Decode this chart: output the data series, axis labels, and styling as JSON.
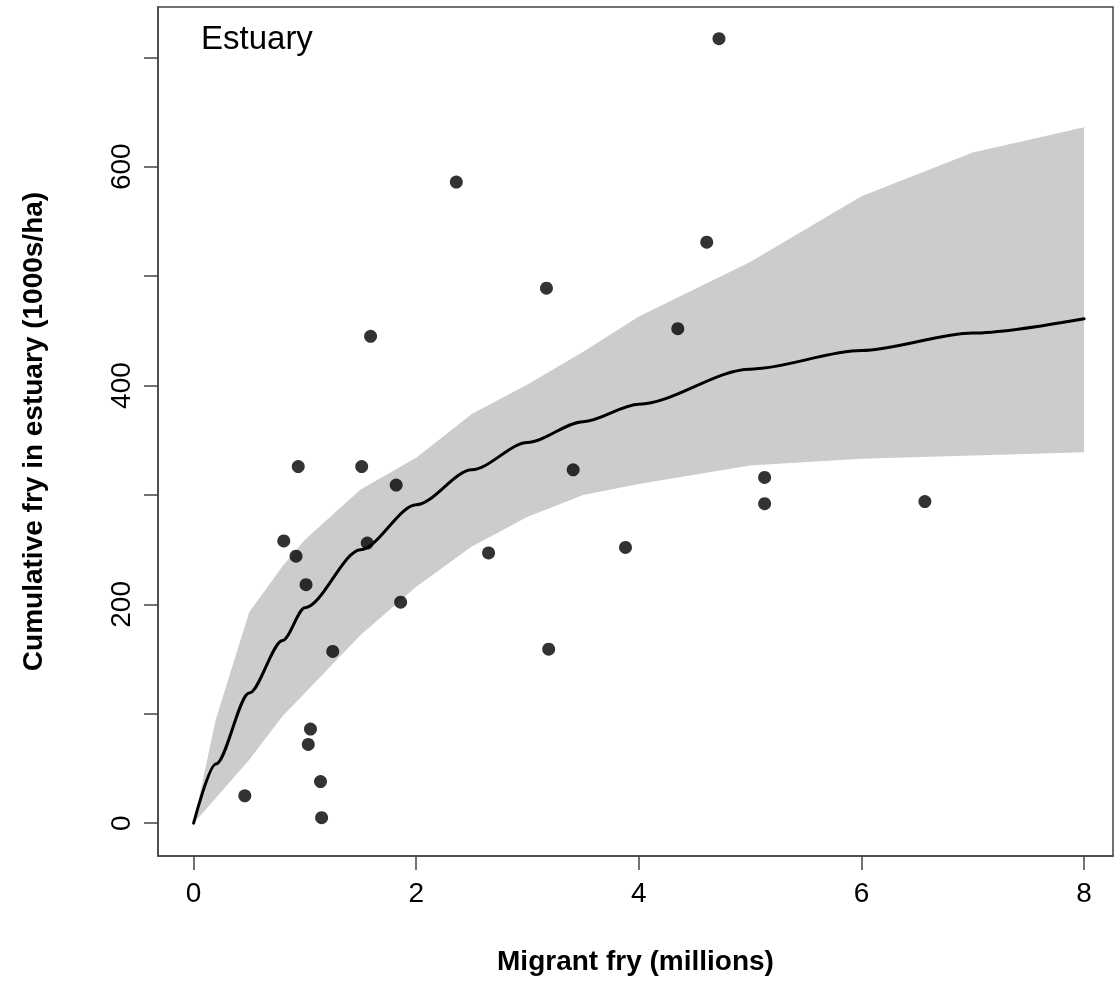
{
  "chart_data": {
    "type": "scatter",
    "title": "Estuary",
    "xlabel": "Migrant fry (millions)",
    "ylabel": "Cumulative fry in estuary (1000s/ha)",
    "xlim": [
      -0.32,
      8.26
    ],
    "ylim": [
      -30,
      746
    ],
    "xticks": [
      0,
      2,
      4,
      6,
      8
    ],
    "yticks": [
      0,
      {
        "value": 100,
        "label": null
      },
      200,
      {
        "value": 300,
        "label": null
      },
      400,
      {
        "value": 500,
        "label": null
      },
      600,
      {
        "value": 700,
        "label": null
      }
    ],
    "grid": false,
    "series": [
      {
        "type": "line",
        "color": "#000000",
        "marker": "none",
        "line_style": "solid",
        "x": [
          0,
          0.2,
          0.5,
          0.8,
          1,
          1.5,
          2,
          2.5,
          3,
          3.5,
          4,
          5,
          6,
          7,
          8
        ],
        "values": [
          0,
          54,
          119,
          167,
          197,
          250,
          291,
          323,
          348,
          367,
          383,
          415,
          432,
          448,
          461
        ],
        "lower": [
          0,
          23,
          58,
          98,
          119,
          172,
          216,
          253,
          280,
          300,
          310,
          327,
          333,
          336,
          339
        ],
        "upper": [
          0,
          95,
          193,
          235,
          259,
          305,
          334,
          374,
          401,
          431,
          463,
          513,
          573,
          613,
          636
        ]
      },
      {
        "color": "#000000",
        "marker": "circle",
        "x": [
          0.94,
          1.51,
          1.82,
          3.41,
          0.81,
          0.92,
          1.56,
          2.65,
          3.88,
          1.01,
          1.86,
          1.25,
          3.19,
          1.05,
          1.03,
          1.14,
          0.46,
          1.15,
          2.36,
          3.17,
          1.59,
          4.72,
          4.61,
          4.35,
          5.13,
          5.13,
          6.57
        ],
        "values": [
          326,
          326,
          309,
          323,
          258,
          244,
          256,
          247,
          252,
          218,
          202,
          157,
          159,
          86,
          72,
          38,
          25,
          5,
          586,
          489,
          445,
          717,
          531,
          452,
          316,
          292,
          294
        ]
      }
    ]
  }
}
